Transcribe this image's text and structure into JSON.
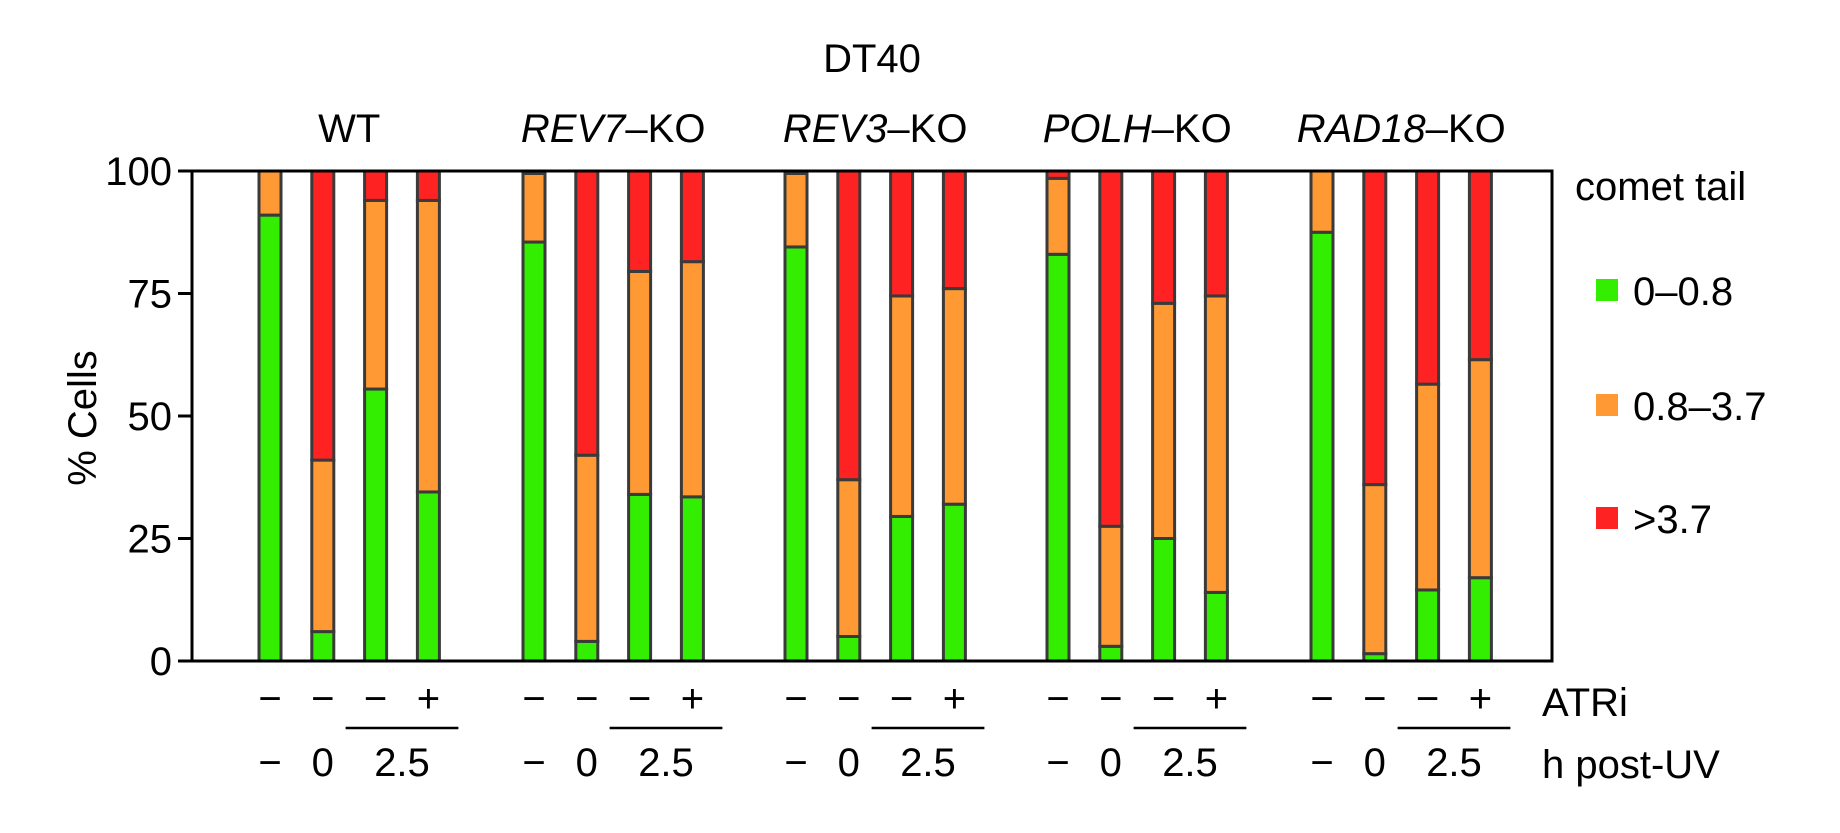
{
  "chart_data": {
    "type": "bar",
    "stacked": true,
    "title": "DT40",
    "ylabel": "% Cells",
    "ylim": [
      0,
      100
    ],
    "yticks": [
      "0",
      "25",
      "50",
      "75",
      "100"
    ],
    "legend": {
      "title": "comet tail",
      "position": "right",
      "entries": [
        {
          "label": "0–0.8",
          "color": "#33ee00"
        },
        {
          "label": "0.8–3.7",
          "color": "#ff9933"
        },
        {
          "label": ">3.7",
          "color": "#ff2222"
        }
      ]
    },
    "row_labels": {
      "atri": "ATRi",
      "time": "h post-UV"
    },
    "groups": [
      {
        "label_italic": "",
        "label_plain": "WT",
        "bars": [
          {
            "atri": "−",
            "time": "−",
            "values": [
              91,
              9,
              0
            ]
          },
          {
            "atri": "−",
            "time": "0",
            "values": [
              6,
              35,
              59
            ]
          },
          {
            "atri": "−",
            "time": "2.5",
            "values": [
              55.5,
              38.5,
              6
            ]
          },
          {
            "atri": "+",
            "time": "2.5",
            "values": [
              34.5,
              59.5,
              6
            ]
          }
        ]
      },
      {
        "label_italic": "REV7",
        "label_plain": "–KO",
        "bars": [
          {
            "atri": "−",
            "time": "−",
            "values": [
              85.5,
              14,
              0.5
            ]
          },
          {
            "atri": "−",
            "time": "0",
            "values": [
              4,
              38,
              58
            ]
          },
          {
            "atri": "−",
            "time": "2.5",
            "values": [
              34,
              45.5,
              20.5
            ]
          },
          {
            "atri": "+",
            "time": "2.5",
            "values": [
              33.5,
              48,
              18.5
            ]
          }
        ]
      },
      {
        "label_italic": "REV3",
        "label_plain": "–KO",
        "bars": [
          {
            "atri": "−",
            "time": "−",
            "values": [
              84.5,
              15,
              0.5
            ]
          },
          {
            "atri": "−",
            "time": "0",
            "values": [
              5,
              32,
              63
            ]
          },
          {
            "atri": "−",
            "time": "2.5",
            "values": [
              29.5,
              45,
              25.5
            ]
          },
          {
            "atri": "+",
            "time": "2.5",
            "values": [
              32,
              44,
              24
            ]
          }
        ]
      },
      {
        "label_italic": "POLH",
        "label_plain": "–KO",
        "bars": [
          {
            "atri": "−",
            "time": "−",
            "values": [
              83,
              15.5,
              1.5
            ]
          },
          {
            "atri": "−",
            "time": "0",
            "values": [
              3,
              24.5,
              72.5
            ]
          },
          {
            "atri": "−",
            "time": "2.5",
            "values": [
              25,
              48,
              27
            ]
          },
          {
            "atri": "+",
            "time": "2.5",
            "values": [
              14,
              60.5,
              25.5
            ]
          }
        ]
      },
      {
        "label_italic": "RAD18",
        "label_plain": "–KO",
        "bars": [
          {
            "atri": "−",
            "time": "−",
            "values": [
              87.5,
              12.5,
              0
            ]
          },
          {
            "atri": "−",
            "time": "0",
            "values": [
              1.5,
              34.5,
              64
            ]
          },
          {
            "atri": "−",
            "time": "2.5",
            "values": [
              14.5,
              42,
              43.5
            ]
          },
          {
            "atri": "+",
            "time": "2.5",
            "values": [
              17,
              44.5,
              38.5
            ]
          }
        ]
      }
    ]
  }
}
